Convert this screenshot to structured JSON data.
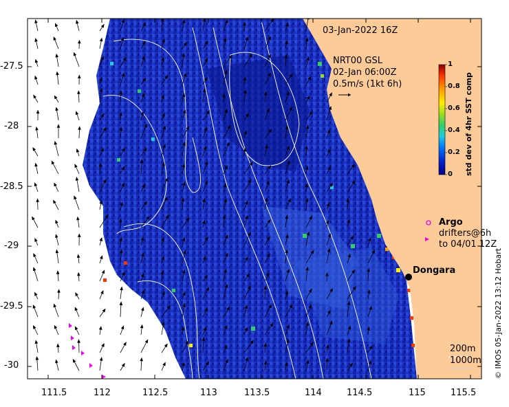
{
  "title": "03-Jan-2022 16Z",
  "product": "NRT00 GSL",
  "current_time": "02-Jan 06:00Z",
  "scale": "0.5m/s (1kt 6h)",
  "colorbar": {
    "label": "std dev of 4hr SST comp",
    "ticks": [
      "1",
      "0.8",
      "0.6",
      "0.4",
      "0.2",
      "0"
    ],
    "colors": [
      "#8b0000",
      "#ff3300",
      "#ff9900",
      "#ffff00",
      "#66cc33",
      "#00cc99",
      "#33bbff",
      "#0044ff",
      "#000088"
    ]
  },
  "legend": {
    "argo_label": "Argo",
    "drifters_label": "drifters@6h",
    "drifters_to": "to 04/01 12Z",
    "argo_color": "#ee00ee"
  },
  "place": {
    "name": "Dongara"
  },
  "contours": {
    "label_200": "200m",
    "label_1000": "1000m"
  },
  "credit": "© IMOS 05-Jan-2022 13:12 Hobart",
  "axes": {
    "x_ticks": [
      "111.5",
      "112",
      "112.5",
      "113",
      "113.5",
      "114",
      "114.5",
      "115",
      "115.5"
    ],
    "y_ticks": [
      "-27.5",
      "-28",
      "-28.5",
      "-29",
      "-29.5",
      "-30"
    ]
  },
  "colors": {
    "land": "#fccb98",
    "ocean_deep": "#0a1a9a"
  }
}
